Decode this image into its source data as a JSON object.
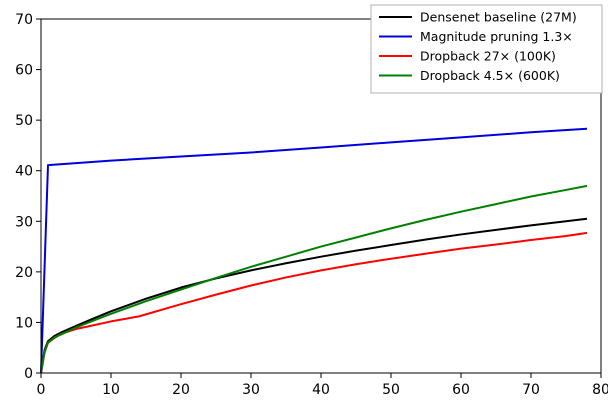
{
  "chart_data": {
    "type": "line",
    "title": "",
    "xlabel": "",
    "ylabel": "",
    "xlim": [
      0,
      80
    ],
    "ylim": [
      0,
      70
    ],
    "xticks": [
      0,
      10,
      20,
      30,
      40,
      50,
      60,
      70,
      80
    ],
    "yticks": [
      0,
      10,
      20,
      30,
      40,
      50,
      60,
      70
    ],
    "grid": false,
    "legend_position": "top-right",
    "series": [
      {
        "name": "Densenet baseline (27M)",
        "color": "#000000",
        "x": [
          0,
          0.5,
          1,
          2,
          3,
          5,
          7,
          10,
          15,
          20,
          25,
          30,
          35,
          40,
          45,
          50,
          55,
          60,
          65,
          70,
          75,
          78
        ],
        "y": [
          0,
          4.5,
          6.3,
          7.4,
          8.1,
          9.3,
          10.5,
          12.2,
          14.7,
          16.9,
          18.7,
          20.3,
          21.7,
          23.0,
          24.2,
          25.3,
          26.4,
          27.4,
          28.3,
          29.2,
          30.0,
          30.5
        ]
      },
      {
        "name": "Magnitude pruning 1.3×",
        "color": "#0000dd",
        "x": [
          0,
          1,
          5,
          10,
          20,
          30,
          40,
          50,
          60,
          70,
          78
        ],
        "y": [
          0,
          41.1,
          41.5,
          42.0,
          42.8,
          43.6,
          44.6,
          45.6,
          46.6,
          47.6,
          48.3
        ]
      },
      {
        "name": "Dropback 27× (100K)",
        "color": "#ff0000",
        "x": [
          0,
          0.5,
          1,
          2,
          3,
          5,
          7,
          10,
          14,
          20,
          25,
          30,
          35,
          40,
          45,
          50,
          55,
          60,
          65,
          70,
          75,
          78
        ],
        "y": [
          0,
          4.0,
          6.0,
          7.0,
          7.8,
          8.7,
          9.3,
          10.2,
          11.2,
          13.6,
          15.5,
          17.3,
          18.9,
          20.3,
          21.5,
          22.6,
          23.6,
          24.6,
          25.4,
          26.3,
          27.1,
          27.7
        ]
      },
      {
        "name": "Dropback 4.5× (600K)",
        "color": "#008000",
        "x": [
          0,
          0.5,
          1,
          2,
          3,
          5,
          7,
          10,
          15,
          20,
          25,
          30,
          35,
          40,
          45,
          50,
          55,
          60,
          65,
          70,
          75,
          78
        ],
        "y": [
          0,
          4.2,
          6.0,
          7.1,
          7.7,
          9.0,
          10.1,
          11.7,
          14.2,
          16.5,
          18.8,
          21.0,
          23.0,
          25.0,
          26.8,
          28.6,
          30.3,
          31.9,
          33.4,
          34.9,
          36.2,
          37.0
        ]
      }
    ]
  }
}
